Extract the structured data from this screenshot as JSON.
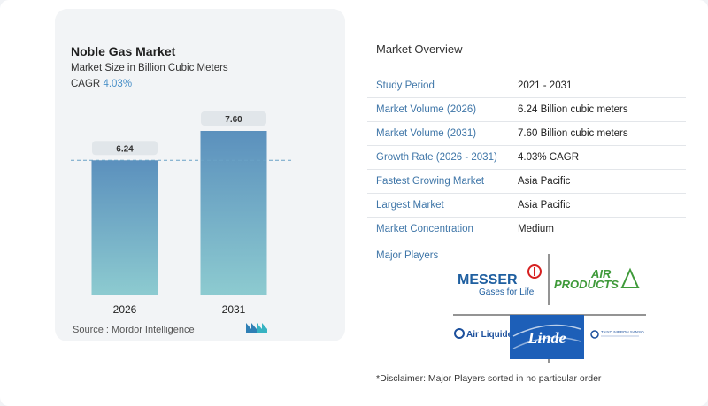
{
  "chart_data": {
    "type": "bar",
    "title": "Noble Gas Market",
    "subtitle": "Market Size in Billion Cubic Meters",
    "cagr_label": "CAGR",
    "cagr_value": "4.03%",
    "categories": [
      "2026",
      "2031"
    ],
    "values": [
      6.24,
      7.6
    ],
    "value_labels": [
      "6.24",
      "7.60"
    ],
    "ylim": [
      0,
      7.6
    ],
    "grid": false,
    "reference_line": "dashed line at first bar value",
    "colors": {
      "bar_top": "#5b90bd",
      "bar_bottom": "#8dcbd0",
      "label_bg": "#e1e6ea",
      "ref_line": "#6aa2c5"
    }
  },
  "source": "Source :  Mordor Intelligence",
  "overview": {
    "title": "Market Overview",
    "rows": [
      {
        "key": "Study Period",
        "value": "2021 - 2031"
      },
      {
        "key": "Market Volume (2026)",
        "value": "6.24 Billion cubic meters"
      },
      {
        "key": "Market Volume (2031)",
        "value": "7.60 Billion cubic meters"
      },
      {
        "key": "Growth Rate (2026 - 2031)",
        "value": "4.03% CAGR"
      },
      {
        "key": "Fastest Growing Market",
        "value": "Asia Pacific"
      },
      {
        "key": "Largest Market",
        "value": "Asia Pacific"
      },
      {
        "key": "Market Concentration",
        "value": "Medium"
      }
    ]
  },
  "players": {
    "label": "Major Players",
    "logos": [
      {
        "name": "messer-logo",
        "text": "MESSER",
        "tagline": "Gases for Life"
      },
      {
        "name": "air-products-logo",
        "text1": "AIR",
        "text2": "PRODUCTS"
      },
      {
        "name": "air-liquide-logo",
        "text": "Air Liquide"
      },
      {
        "name": "linde-logo",
        "text": "Linde"
      },
      {
        "name": "taiyo-nippon-sanso-logo",
        "text": "TAIYO NIPPON SANSO"
      }
    ]
  },
  "disclaimer": "*Disclaimer: Major Players sorted in no particular order"
}
